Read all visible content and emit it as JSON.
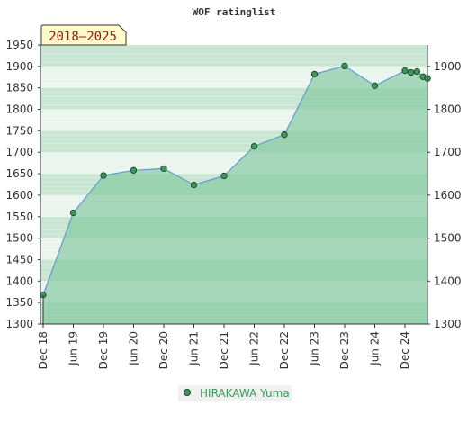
{
  "chart_data": {
    "type": "area",
    "title": "WOF ratinglist",
    "badge": "2018–2025",
    "ylim": [
      1300,
      1950
    ],
    "left_ticks": [
      "1300",
      "1350",
      "1400",
      "1450",
      "1500",
      "1550",
      "1600",
      "1650",
      "1700",
      "1750",
      "1800",
      "1850",
      "1900",
      "1950"
    ],
    "right_ticks": [
      "1300",
      "1400",
      "1500",
      "1600",
      "1700",
      "1800",
      "1900"
    ],
    "x_ticks": [
      "Dec 18",
      "Jun 19",
      "Dec 19",
      "Jun 20",
      "Dec 20",
      "Jun 21",
      "Dec 21",
      "Jun 22",
      "Dec 22",
      "Jun 23",
      "Dec 23",
      "Jun 24",
      "Dec 24"
    ],
    "series": [
      {
        "name": "HIRAKAWA Yuma",
        "x": [
          0,
          1,
          2,
          3,
          4,
          5,
          6,
          7,
          8,
          9,
          10,
          11,
          12,
          12.2,
          12.4,
          12.6,
          12.75
        ],
        "values": [
          1368,
          1559,
          1646,
          1658,
          1662,
          1624,
          1645,
          1714,
          1741,
          1882,
          1901,
          1855,
          1890,
          1886,
          1888,
          1876,
          1872
        ]
      }
    ],
    "colors": {
      "area": "#7cc59a",
      "line": "#5b9bd5",
      "marker": "#3a9a5a",
      "band_dark": "#c9e6d3",
      "band_light": "#eaf5ee",
      "badge_fill": "#fffbc8"
    },
    "legend_position": "bottom-center",
    "grid": true
  }
}
